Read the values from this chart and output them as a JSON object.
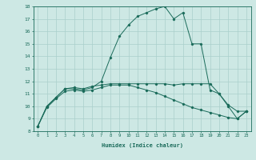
{
  "title": "",
  "xlabel": "Humidex (Indice chaleur)",
  "ylabel": "",
  "bg_color": "#cde8e4",
  "grid_color": "#aacfcb",
  "line_color": "#1a6b5a",
  "xlim": [
    -0.5,
    23.5
  ],
  "ylim": [
    8,
    18
  ],
  "xticks": [
    0,
    1,
    2,
    3,
    4,
    5,
    6,
    7,
    8,
    9,
    10,
    11,
    12,
    13,
    14,
    15,
    16,
    17,
    18,
    19,
    20,
    21,
    22,
    23
  ],
  "yticks": [
    8,
    9,
    10,
    11,
    12,
    13,
    14,
    15,
    16,
    17,
    18
  ],
  "line1_x": [
    0,
    1,
    2,
    3,
    4,
    5,
    6,
    7,
    8,
    9,
    10,
    11,
    12,
    13,
    14,
    15,
    16,
    17,
    18,
    19,
    20,
    21,
    22,
    23
  ],
  "line1_y": [
    8.4,
    10.0,
    10.7,
    11.4,
    11.5,
    11.4,
    11.6,
    11.7,
    11.8,
    11.8,
    11.8,
    11.8,
    11.8,
    11.8,
    11.8,
    11.7,
    11.8,
    11.8,
    11.8,
    11.8,
    11.0,
    10.1,
    9.6,
    9.6
  ],
  "line2_x": [
    0,
    1,
    2,
    3,
    4,
    5,
    6,
    7,
    8,
    9,
    10,
    11,
    12,
    13,
    14,
    15,
    16,
    17,
    18,
    19,
    20,
    21,
    22,
    23
  ],
  "line2_y": [
    8.4,
    10.0,
    10.7,
    11.4,
    11.4,
    11.3,
    11.5,
    12.0,
    13.9,
    15.6,
    16.5,
    17.2,
    17.5,
    17.8,
    18.0,
    17.0,
    17.5,
    15.0,
    15.0,
    11.3,
    11.0,
    10.0,
    9.0,
    9.6
  ],
  "line3_x": [
    0,
    1,
    2,
    3,
    4,
    5,
    6,
    7,
    8,
    9,
    10,
    11,
    12,
    13,
    14,
    15,
    16,
    17,
    18,
    19,
    20,
    21,
    22,
    23
  ],
  "line3_y": [
    8.4,
    9.9,
    10.6,
    11.2,
    11.3,
    11.2,
    11.3,
    11.5,
    11.7,
    11.7,
    11.7,
    11.5,
    11.3,
    11.1,
    10.8,
    10.5,
    10.2,
    9.9,
    9.7,
    9.5,
    9.3,
    9.1,
    9.0,
    9.6
  ]
}
